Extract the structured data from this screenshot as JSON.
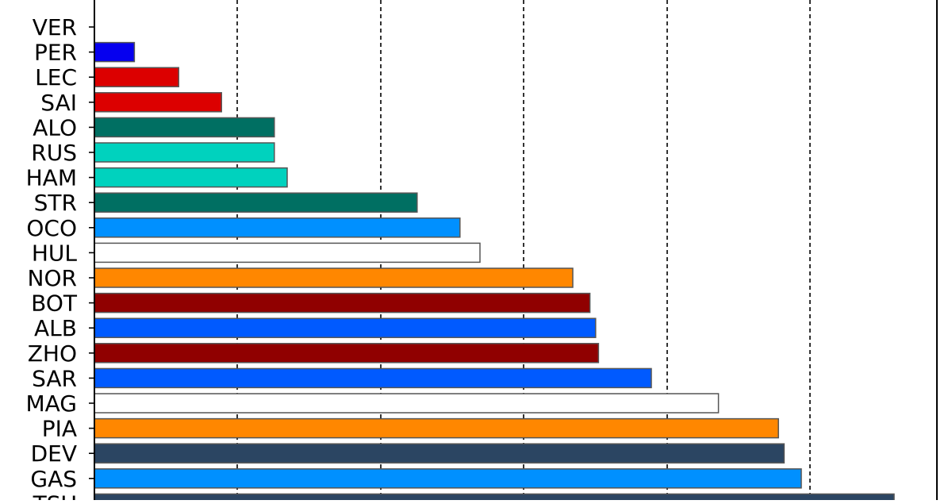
{
  "chart_data": {
    "type": "bar",
    "orientation": "horizontal",
    "title": "",
    "xlabel": "",
    "ylabel": "",
    "grid": "vertical dashed",
    "xlim": [
      0,
      0.59
    ],
    "categories": [
      "VER",
      "PER",
      "LEC",
      "SAI",
      "ALO",
      "RUS",
      "HAM",
      "STR",
      "OCO",
      "HUL",
      "NOR",
      "BOT",
      "ALB",
      "ZHO",
      "SAR",
      "MAG",
      "PIA",
      "DEV",
      "GAS",
      "TSU"
    ],
    "values": [
      0.0,
      0.028,
      0.059,
      0.089,
      0.126,
      0.126,
      0.135,
      0.226,
      0.256,
      0.27,
      0.335,
      0.347,
      0.351,
      0.353,
      0.39,
      0.437,
      0.479,
      0.483,
      0.495,
      0.56
    ],
    "colors": [
      "#0600ef",
      "#0600ef",
      "#dc0000",
      "#dc0000",
      "#006f62",
      "#00d2be",
      "#00d2be",
      "#006f62",
      "#0090ff",
      "#ffffff",
      "#ff8700",
      "#900000",
      "#005aff",
      "#900000",
      "#005aff",
      "#ffffff",
      "#ff8700",
      "#2b4562",
      "#0090ff",
      "#2b4562"
    ]
  }
}
